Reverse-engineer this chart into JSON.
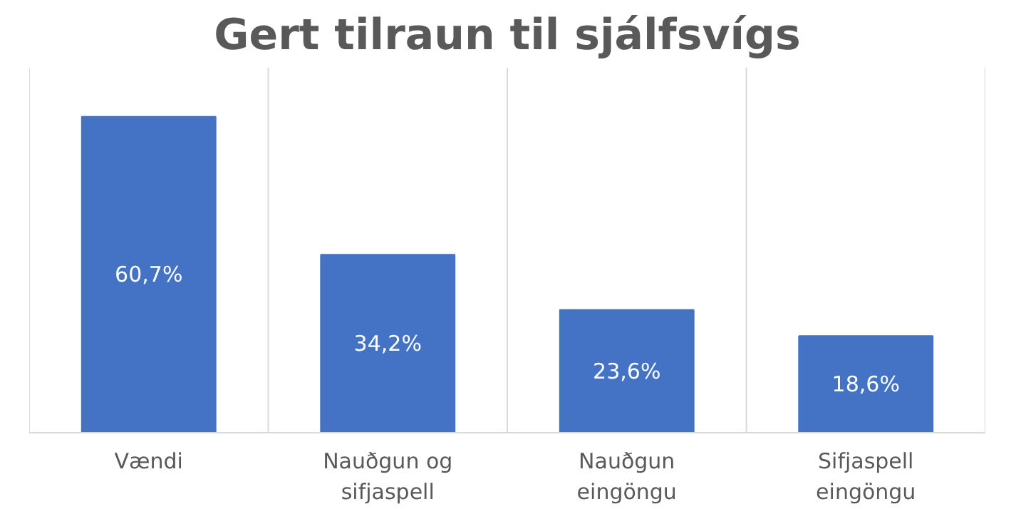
{
  "chart_data": {
    "type": "bar",
    "title": "Gert tilraun til sjálfsvígs",
    "categories": [
      "Vændi",
      "Nauðgun og sifjaspell",
      "Nauðgun eingöngu",
      "Sifjaspell eingöngu"
    ],
    "values": [
      60.7,
      34.2,
      23.6,
      18.6
    ],
    "value_labels": [
      "60,7%",
      "34,2%",
      "23,6%",
      "18,6%"
    ],
    "color": "#4472c4",
    "grid": "x"
  }
}
